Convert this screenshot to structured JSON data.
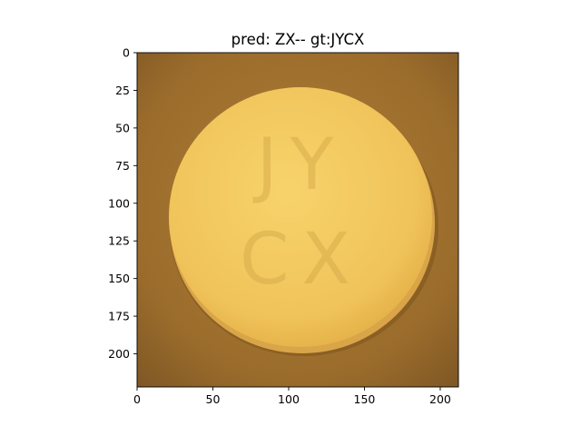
{
  "figure": {
    "title": "pred: ZX-- gt:JYCX"
  },
  "image": {
    "width": 212,
    "height": 222,
    "subject": "round yellow pill on brown textured background",
    "imprint": [
      "JY",
      "CX"
    ],
    "colors": {
      "background": "#9a6a28",
      "pill": "#f2c65d"
    }
  },
  "axes": {
    "xlim": [
      0,
      212
    ],
    "ylim": [
      222,
      0
    ],
    "xticks": [
      0,
      50,
      100,
      150,
      200
    ],
    "yticks": [
      0,
      25,
      50,
      75,
      100,
      125,
      150,
      175,
      200
    ]
  }
}
